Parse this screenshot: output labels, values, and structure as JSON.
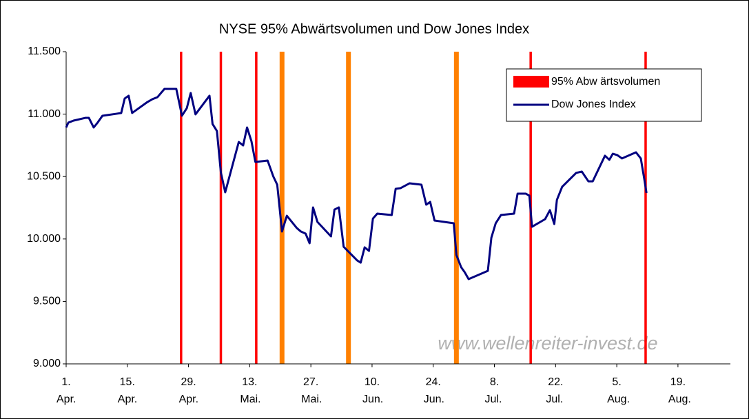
{
  "chart_data": {
    "type": "line",
    "title": "NYSE 95% Abwärtsvolumen und Dow Jones Index",
    "watermark": "www.wellenreiter-invest.de",
    "ylim": [
      9000,
      11500
    ],
    "yticks": [
      {
        "value": 9000,
        "label": "9.000"
      },
      {
        "value": 9500,
        "label": "9.500"
      },
      {
        "value": 10000,
        "label": "10.000"
      },
      {
        "value": 10500,
        "label": "10.500"
      },
      {
        "value": 11000,
        "label": "11.000"
      },
      {
        "value": 11500,
        "label": "11.500"
      }
    ],
    "xlim": [
      0,
      152
    ],
    "xticks": [
      {
        "value": 0,
        "label": "1. Apr."
      },
      {
        "value": 14,
        "label": "15. Apr."
      },
      {
        "value": 28,
        "label": "29. Apr."
      },
      {
        "value": 42,
        "label": "13. Mai."
      },
      {
        "value": 56,
        "label": "27. Mai."
      },
      {
        "value": 70,
        "label": "10. Jun."
      },
      {
        "value": 84,
        "label": "24. Jun."
      },
      {
        "value": 98,
        "label": "8. Jul."
      },
      {
        "value": 112,
        "label": "22. Jul."
      },
      {
        "value": 126,
        "label": "5. Aug."
      },
      {
        "value": 140,
        "label": "19. Aug."
      }
    ],
    "grid": false,
    "legend": "upper right",
    "events": {
      "name": "95% Abw ärtsvolumen",
      "color": "#ff0000",
      "x": [
        26.3,
        35.4,
        43.5,
        49.4,
        64.6,
        89.3,
        106.3,
        132.6
      ],
      "colors": [
        "#ff0000",
        "#ff0000",
        "#ff0000",
        "#ff8000",
        "#ff8000",
        "#ff8000",
        "#ff0000",
        "#ff0000"
      ]
    },
    "series": [
      {
        "name": "Dow Jones Index",
        "color": "#000080",
        "x": [
          0,
          0.5,
          1.7,
          4.4,
          5.2,
          6.3,
          7.2,
          8.3,
          11.5,
          12.6,
          13.4,
          14.3,
          15.1,
          18.6,
          19.7,
          20.9,
          22.5,
          25.2,
          26.5,
          27.6,
          28.5,
          29.6,
          32.8,
          33.5,
          34.5,
          35.4,
          36.4,
          39.5,
          40.5,
          41.4,
          42.4,
          43.3,
          46.1,
          47.4,
          48.3,
          49.4,
          50.5,
          52.8,
          53.7,
          54.8,
          55.7,
          56.5,
          57.5,
          60.6,
          61.4,
          62.4,
          63.5,
          66.6,
          67.4,
          68.3,
          69.3,
          70.2,
          71.2,
          74.5,
          75.4,
          76.5,
          78.6,
          81.3,
          82.4,
          83.3,
          84.3,
          88.7,
          89.3,
          90.4,
          91.2,
          92.1,
          96.5,
          97.3,
          98.3,
          99.5,
          102.5,
          103.3,
          105.2,
          106,
          106.6,
          109.6,
          110.7,
          111.7,
          112.3,
          113.5,
          116.7,
          118,
          119.5,
          120.5,
          123.3,
          124.3,
          125.1,
          126.1,
          127.2,
          130.4,
          131.5,
          132.3,
          132.8
        ],
        "values": [
          10893,
          10932,
          10948,
          10970,
          10970,
          10893,
          10932,
          10987,
          11003,
          11009,
          11125,
          11147,
          11009,
          11097,
          11119,
          11136,
          11202,
          11202,
          10987,
          11047,
          11169,
          10998,
          11147,
          10921,
          10865,
          10534,
          10374,
          10777,
          10749,
          10893,
          10783,
          10617,
          10628,
          10501,
          10435,
          10060,
          10186,
          10087,
          10060,
          10043,
          9966,
          10253,
          10137,
          10021,
          10236,
          10253,
          9938,
          9828,
          9811,
          9933,
          9905,
          10164,
          10203,
          10192,
          10402,
          10407,
          10446,
          10435,
          10275,
          10297,
          10148,
          10126,
          9872,
          9773,
          9734,
          9679,
          9745,
          10010,
          10126,
          10192,
          10203,
          10363,
          10363,
          10347,
          10098,
          10159,
          10231,
          10120,
          10313,
          10418,
          10529,
          10540,
          10462,
          10462,
          10667,
          10634,
          10683,
          10672,
          10645,
          10694,
          10645,
          10479,
          10369
        ]
      }
    ]
  }
}
